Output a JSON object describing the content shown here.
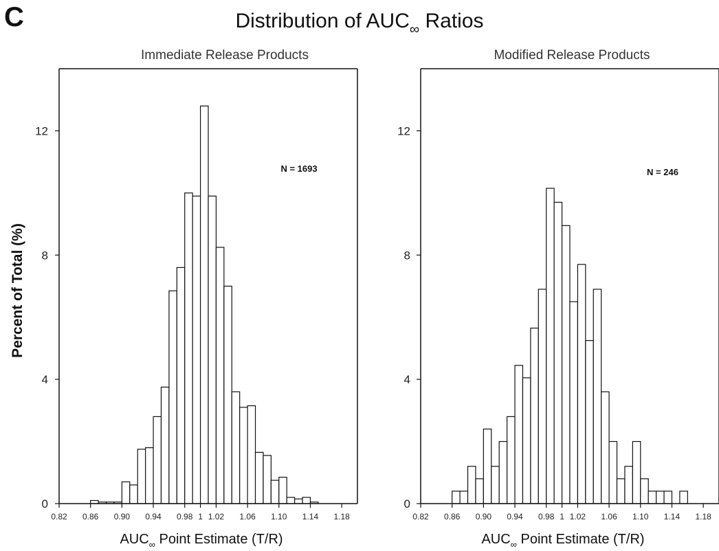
{
  "figure": {
    "panel_letter": "C",
    "title_main": "Distribution of AUC",
    "title_subscript": "∞",
    "title_suffix": " Ratios",
    "shared_ylabel": "Percent of Total (%)"
  },
  "chart_data": [
    {
      "type": "bar",
      "title": "Immediate Release Products",
      "annotation": "N = 1693",
      "xlabel_main": "AUC",
      "xlabel_subscript": "∞",
      "xlabel_suffix": " Point Estimate (T/R)",
      "xlim": [
        0.82,
        1.2
      ],
      "ylim": [
        0,
        14
      ],
      "bin_width": 0.01,
      "x_ticks": [
        "0.82",
        "0.86",
        "0.90",
        "0.94",
        "0.98",
        "1",
        "1.02",
        "1.06",
        "1.10",
        "1.14",
        "1.18"
      ],
      "y_ticks": [
        "0",
        "4",
        "8",
        "12"
      ],
      "bins": [
        {
          "x": 0.86,
          "value": 0.1
        },
        {
          "x": 0.87,
          "value": 0.05
        },
        {
          "x": 0.88,
          "value": 0.05
        },
        {
          "x": 0.89,
          "value": 0.05
        },
        {
          "x": 0.9,
          "value": 0.7
        },
        {
          "x": 0.91,
          "value": 0.6
        },
        {
          "x": 0.92,
          "value": 1.75
        },
        {
          "x": 0.93,
          "value": 1.8
        },
        {
          "x": 0.94,
          "value": 2.8
        },
        {
          "x": 0.95,
          "value": 3.75
        },
        {
          "x": 0.96,
          "value": 6.85
        },
        {
          "x": 0.97,
          "value": 7.6
        },
        {
          "x": 0.98,
          "value": 10.0
        },
        {
          "x": 0.99,
          "value": 9.9
        },
        {
          "x": 1.0,
          "value": 12.8
        },
        {
          "x": 1.01,
          "value": 9.9
        },
        {
          "x": 1.02,
          "value": 8.25
        },
        {
          "x": 1.03,
          "value": 7.0
        },
        {
          "x": 1.04,
          "value": 3.6
        },
        {
          "x": 1.05,
          "value": 3.1
        },
        {
          "x": 1.06,
          "value": 3.15
        },
        {
          "x": 1.07,
          "value": 1.65
        },
        {
          "x": 1.08,
          "value": 1.55
        },
        {
          "x": 1.09,
          "value": 0.75
        },
        {
          "x": 1.1,
          "value": 0.85
        },
        {
          "x": 1.11,
          "value": 0.2
        },
        {
          "x": 1.12,
          "value": 0.15
        },
        {
          "x": 1.13,
          "value": 0.2
        },
        {
          "x": 1.14,
          "value": 0.05
        }
      ]
    },
    {
      "type": "bar",
      "title": "Modified Release Products",
      "annotation": "N = 246",
      "xlabel_main": "AUC",
      "xlabel_subscript": "∞",
      "xlabel_suffix": " Point Estimate (T/R)",
      "xlim": [
        0.82,
        1.2
      ],
      "ylim": [
        0,
        14
      ],
      "bin_width": 0.01,
      "x_ticks": [
        "0.82",
        "0.86",
        "0.90",
        "0.94",
        "0.98",
        "1",
        "1.02",
        "1.06",
        "1.10",
        "1.14",
        "1.18"
      ],
      "y_ticks": [
        "0",
        "4",
        "8",
        "12"
      ],
      "bins": [
        {
          "x": 0.86,
          "value": 0.4
        },
        {
          "x": 0.87,
          "value": 0.4
        },
        {
          "x": 0.88,
          "value": 1.2
        },
        {
          "x": 0.89,
          "value": 0.8
        },
        {
          "x": 0.9,
          "value": 2.4
        },
        {
          "x": 0.91,
          "value": 1.2
        },
        {
          "x": 0.92,
          "value": 2.0
        },
        {
          "x": 0.93,
          "value": 2.8
        },
        {
          "x": 0.94,
          "value": 4.45
        },
        {
          "x": 0.95,
          "value": 4.05
        },
        {
          "x": 0.96,
          "value": 5.65
        },
        {
          "x": 0.97,
          "value": 6.9
        },
        {
          "x": 0.98,
          "value": 10.15
        },
        {
          "x": 0.99,
          "value": 9.7
        },
        {
          "x": 1.0,
          "value": 8.95
        },
        {
          "x": 1.01,
          "value": 6.5
        },
        {
          "x": 1.02,
          "value": 7.7
        },
        {
          "x": 1.03,
          "value": 5.25
        },
        {
          "x": 1.04,
          "value": 6.9
        },
        {
          "x": 1.05,
          "value": 3.6
        },
        {
          "x": 1.06,
          "value": 2.0
        },
        {
          "x": 1.07,
          "value": 0.8
        },
        {
          "x": 1.08,
          "value": 1.2
        },
        {
          "x": 1.09,
          "value": 2.0
        },
        {
          "x": 1.1,
          "value": 0.8
        },
        {
          "x": 1.11,
          "value": 0.4
        },
        {
          "x": 1.12,
          "value": 0.4
        },
        {
          "x": 1.13,
          "value": 0.4
        },
        {
          "x": 1.15,
          "value": 0.4
        }
      ]
    }
  ]
}
